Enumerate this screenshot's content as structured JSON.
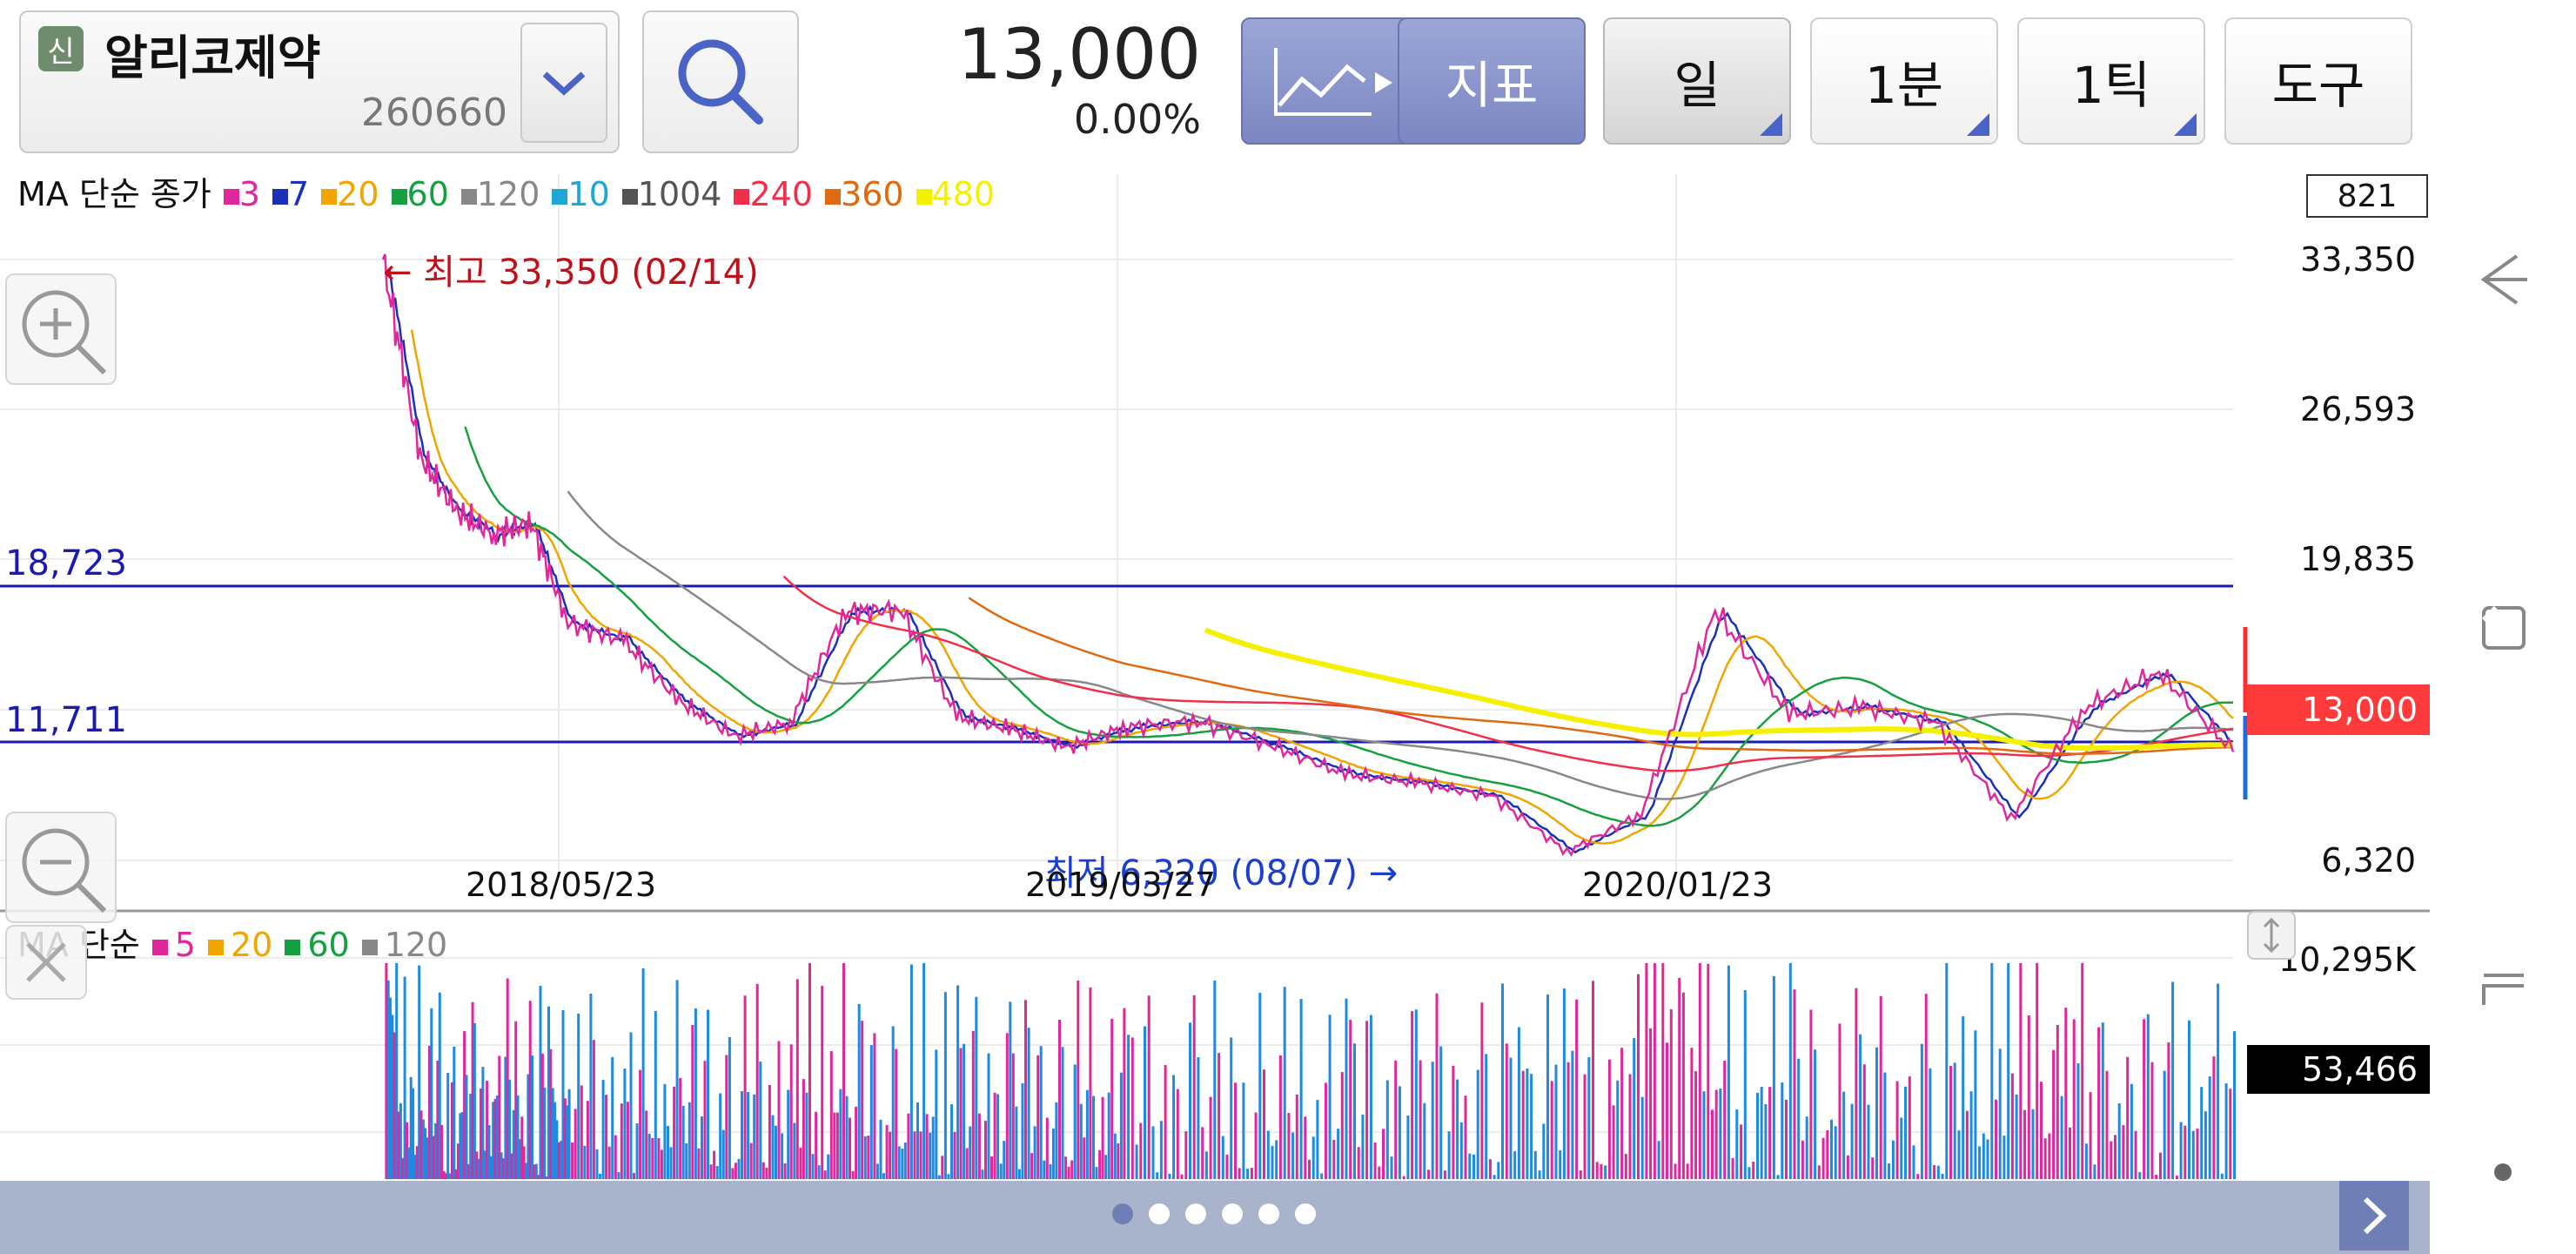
{
  "header": {
    "badge": "신",
    "stock_name": "알리코제약",
    "stock_code": "260660",
    "price": "13,000",
    "change": "0.00%",
    "buttons": {
      "indicator": "지표",
      "period_day": "일",
      "period_min": "1분",
      "period_tick": "1틱",
      "tools": "도구"
    }
  },
  "legend_price": {
    "prefix": "MA 단순 종가",
    "items": [
      {
        "label": "3",
        "color": "#e0279b"
      },
      {
        "label": "7",
        "color": "#1b2fb8"
      },
      {
        "label": "20",
        "color": "#f0a500"
      },
      {
        "label": "60",
        "color": "#16a040"
      },
      {
        "label": "120",
        "color": "#888888"
      },
      {
        "label": "10",
        "color": "#1ea7d6"
      },
      {
        "label": "1004",
        "color": "#555555"
      },
      {
        "label": "240",
        "color": "#f0304a"
      },
      {
        "label": "360",
        "color": "#e06a10"
      },
      {
        "label": "480",
        "color": "#f5f000"
      }
    ]
  },
  "legend_volume": {
    "prefix": "MA 단순",
    "items": [
      {
        "label": "5",
        "color": "#e0279b"
      },
      {
        "label": "20",
        "color": "#f0a500"
      },
      {
        "label": "60",
        "color": "#16a040"
      },
      {
        "label": "120",
        "color": "#888888"
      }
    ]
  },
  "chart": {
    "visible_count": "821",
    "current_price_tag": "13,000",
    "volume_max": "10,295K",
    "volume_current": "53,466",
    "high_annotation": "← 최고 33,350 (02/14)",
    "low_annotation": "최저 6,320 (08/07) →",
    "hline_upper": "18,723",
    "hline_lower": "11,711"
  },
  "chart_data": {
    "type": "line",
    "ylim": [
      6320,
      33350
    ],
    "y_ticks": [
      "33,350",
      "26,593",
      "19,835",
      "6,320"
    ],
    "x_ticks": [
      "2018/05/23",
      "2019/03/27",
      "2020/01/23"
    ],
    "reference_lines": [
      18723,
      11711
    ],
    "high": {
      "value": 33350,
      "date": "02/14"
    },
    "low": {
      "value": 6320,
      "date": "08/07"
    },
    "current": 13000,
    "series": [
      {
        "color": "#e0279b",
        "x": [
          0,
          2,
          4,
          6,
          8,
          10,
          13,
          16,
          19,
          22,
          25,
          28,
          31,
          34,
          37,
          40,
          44,
          48,
          52,
          56,
          60,
          64,
          68,
          72,
          76,
          80,
          84,
          88,
          92,
          96,
          100
        ],
        "y": [
          33350,
          24500,
          22000,
          21000,
          21500,
          17000,
          16200,
          13500,
          11900,
          12500,
          17500,
          17600,
          12800,
          12200,
          11400,
          12300,
          12600,
          11500,
          10200,
          9800,
          9200,
          6700,
          8400,
          17600,
          12900,
          13200,
          12500,
          8200,
          13200,
          14800,
          11200
        ]
      }
    ]
  },
  "volume_data": {
    "ylim": [
      0,
      10295
    ]
  }
}
